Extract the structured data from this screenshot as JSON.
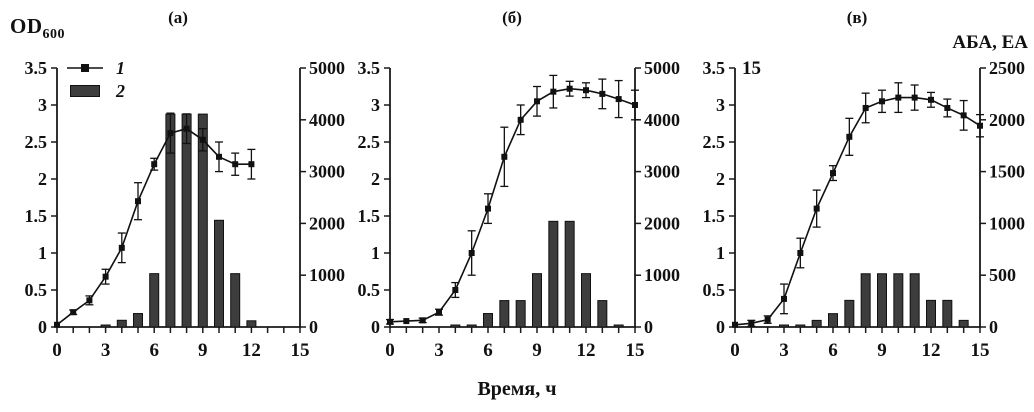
{
  "figure": {
    "y_left_label": {
      "main": "OD",
      "sub": "600"
    },
    "y_right_label": "АБА, ЕА",
    "x_label": "Время, ч",
    "legend": {
      "items": [
        {
          "label": "1",
          "series": "line",
          "symbol": "line-with-square-marker"
        },
        {
          "label": "2",
          "series": "bar",
          "symbol": "filled-rectangle"
        }
      ],
      "location": "panel-a-top-left"
    },
    "colors": {
      "line": "#111111",
      "marker": "#111111",
      "bar_fill": "#3d3d3d",
      "bar_stroke": "#111111",
      "axis": "#1a1a1a",
      "text": "#111111",
      "background": "#ffffff"
    }
  },
  "chart_data": [
    {
      "type": "line+bar",
      "title": "(а)",
      "x_axis": {
        "min": 0,
        "max": 15,
        "minor_step": 1,
        "tick_labels": [
          "0",
          "3",
          "6",
          "9",
          "12",
          "15"
        ]
      },
      "y_left": {
        "min": 0,
        "max": 3.5,
        "tick_labels": [
          "0",
          "0.5",
          "1",
          "1.5",
          "2",
          "2.5",
          "3",
          "3.5"
        ]
      },
      "y_right": {
        "min": 0,
        "max": 5000,
        "tick_labels": [
          "0",
          "1000",
          "2000",
          "3000",
          "4000",
          "5000"
        ]
      },
      "series": [
        {
          "name": "1",
          "type": "line",
          "axis": "left",
          "x": [
            0,
            1,
            2,
            3,
            4,
            5,
            6,
            7,
            8,
            9,
            10,
            11,
            12
          ],
          "y": [
            0.03,
            0.2,
            0.36,
            0.68,
            1.07,
            1.7,
            2.2,
            2.62,
            2.68,
            2.53,
            2.3,
            2.2,
            2.2
          ],
          "yerr": [
            0.02,
            0.03,
            0.06,
            0.1,
            0.2,
            0.25,
            0.08,
            0.27,
            0.2,
            0.15,
            0.2,
            0.15,
            0.2
          ]
        },
        {
          "name": "2",
          "type": "bar",
          "axis": "right",
          "x": [
            3,
            4,
            5,
            6,
            7,
            8,
            9,
            10,
            11,
            12
          ],
          "y": [
            30,
            130,
            260,
            1030,
            4110,
            4110,
            4110,
            2060,
            1030,
            120
          ]
        }
      ],
      "extra_label": ""
    },
    {
      "type": "line+bar",
      "title": "(б)",
      "x_axis": {
        "min": 0,
        "max": 15,
        "minor_step": 1,
        "tick_labels": [
          "0",
          "3",
          "6",
          "9",
          "12",
          "15"
        ]
      },
      "y_left": {
        "min": 0,
        "max": 3.5,
        "tick_labels": [
          "0",
          "0.5",
          "1",
          "1.5",
          "2",
          "2.5",
          "3",
          "3.5"
        ]
      },
      "y_right": {
        "min": 0,
        "max": 5000,
        "tick_labels": [
          "0",
          "1000",
          "2000",
          "3000",
          "4000",
          "5000"
        ]
      },
      "series": [
        {
          "name": "1",
          "type": "line",
          "axis": "left",
          "x": [
            0,
            1,
            2,
            3,
            4,
            5,
            6,
            7,
            8,
            9,
            10,
            11,
            12,
            13,
            14,
            15
          ],
          "y": [
            0.07,
            0.08,
            0.09,
            0.2,
            0.5,
            1.0,
            1.6,
            2.3,
            2.8,
            3.05,
            3.18,
            3.22,
            3.2,
            3.15,
            3.08,
            3.0
          ],
          "yerr": [
            0.03,
            0.02,
            0.03,
            0.04,
            0.1,
            0.3,
            0.2,
            0.4,
            0.2,
            0.2,
            0.22,
            0.1,
            0.1,
            0.2,
            0.25,
            0.2
          ]
        },
        {
          "name": "2",
          "type": "bar",
          "axis": "right",
          "x": [
            4,
            5,
            6,
            7,
            8,
            9,
            10,
            11,
            12,
            13,
            14
          ],
          "y": [
            25,
            30,
            260,
            510,
            510,
            1030,
            2040,
            2040,
            1030,
            510,
            25
          ]
        }
      ],
      "extra_label": ""
    },
    {
      "type": "line+bar",
      "title": "(в)",
      "x_axis": {
        "min": 0,
        "max": 15,
        "minor_step": 1,
        "tick_labels": [
          "0",
          "3",
          "6",
          "9",
          "12",
          "15"
        ]
      },
      "y_left": {
        "min": 0,
        "max": 3.5,
        "tick_labels": [
          "0",
          "0.5",
          "1",
          "1.5",
          "2",
          "2.5",
          "3",
          "3.5"
        ]
      },
      "y_right": {
        "min": 0,
        "max": 2500,
        "tick_labels": [
          "0",
          "500",
          "1000",
          "1500",
          "2000",
          "2500"
        ]
      },
      "series": [
        {
          "name": "1",
          "type": "line",
          "axis": "left",
          "x": [
            0,
            1,
            2,
            3,
            4,
            5,
            6,
            7,
            8,
            9,
            10,
            11,
            12,
            13,
            14,
            15
          ],
          "y": [
            0.03,
            0.05,
            0.1,
            0.38,
            1.0,
            1.6,
            2.08,
            2.57,
            2.96,
            3.05,
            3.1,
            3.1,
            3.07,
            2.96,
            2.86,
            2.72
          ],
          "yerr": [
            0.02,
            0.04,
            0.05,
            0.2,
            0.2,
            0.25,
            0.1,
            0.25,
            0.2,
            0.15,
            0.2,
            0.17,
            0.1,
            0.12,
            0.2,
            0.15
          ]
        },
        {
          "name": "2",
          "type": "bar",
          "axis": "right",
          "x": [
            3,
            4,
            5,
            6,
            7,
            8,
            9,
            10,
            11,
            12,
            13,
            14
          ],
          "y": [
            10,
            15,
            64,
            129,
            257,
            514,
            514,
            514,
            514,
            257,
            257,
            64
          ]
        }
      ],
      "extra_label": "15"
    }
  ]
}
